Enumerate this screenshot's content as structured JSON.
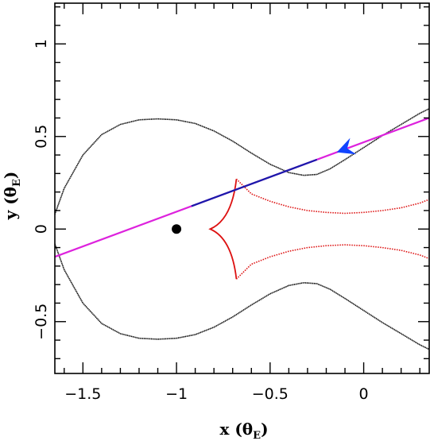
{
  "chart_data": {
    "type": "line",
    "title": "",
    "xlabel": {
      "main": "x (θ",
      "sub": "E",
      "close": ")"
    },
    "ylabel": {
      "main": "y (θ",
      "sub": "E",
      "close": ")"
    },
    "xlim": [
      -1.65,
      0.35
    ],
    "ylim": [
      -0.78,
      1.22
    ],
    "grid": false,
    "legend": "none",
    "x_ticks": [
      {
        "value": -1.5,
        "label": "−1.5"
      },
      {
        "value": -1.0,
        "label": "−1"
      },
      {
        "value": -0.5,
        "label": "−0.5"
      },
      {
        "value": 0.0,
        "label": "0"
      }
    ],
    "y_ticks": [
      {
        "value": -0.5,
        "label": "−0.5"
      },
      {
        "value": 0.0,
        "label": "0"
      },
      {
        "value": 0.5,
        "label": "0.5"
      },
      {
        "value": 1.0,
        "label": "1"
      }
    ],
    "critical_curve": {
      "color": "#000000",
      "upper": [
        [
          -1.65,
          0.08
        ],
        [
          -1.6,
          0.22
        ],
        [
          -1.5,
          0.4
        ],
        [
          -1.4,
          0.51
        ],
        [
          -1.3,
          0.565
        ],
        [
          -1.2,
          0.59
        ],
        [
          -1.1,
          0.595
        ],
        [
          -1.0,
          0.59
        ],
        [
          -0.9,
          0.57
        ],
        [
          -0.8,
          0.53
        ],
        [
          -0.7,
          0.475
        ],
        [
          -0.6,
          0.41
        ],
        [
          -0.5,
          0.35
        ],
        [
          -0.4,
          0.305
        ],
        [
          -0.32,
          0.29
        ],
        [
          -0.25,
          0.295
        ],
        [
          -0.18,
          0.325
        ],
        [
          -0.1,
          0.375
        ],
        [
          0.0,
          0.44
        ],
        [
          0.1,
          0.505
        ],
        [
          0.2,
          0.565
        ],
        [
          0.3,
          0.625
        ],
        [
          0.35,
          0.65
        ]
      ]
    },
    "caustic": {
      "color": "#dd1111",
      "cusps": {
        "left": [
          -0.82,
          0.0
        ],
        "top": [
          -0.68,
          0.27
        ],
        "bottom": [
          -0.68,
          -0.27
        ]
      },
      "right_upper": [
        [
          -0.68,
          0.27
        ],
        [
          -0.6,
          0.19
        ],
        [
          -0.5,
          0.15
        ],
        [
          -0.4,
          0.12
        ],
        [
          -0.3,
          0.1
        ],
        [
          -0.2,
          0.09
        ],
        [
          -0.1,
          0.085
        ],
        [
          0.0,
          0.09
        ],
        [
          0.1,
          0.1
        ],
        [
          0.2,
          0.115
        ],
        [
          0.3,
          0.14
        ],
        [
          0.35,
          0.16
        ]
      ]
    },
    "lens_point": {
      "x": -1.0,
      "y": 0.0,
      "color": "#000000"
    },
    "trajectory": {
      "color": "#dd22dd",
      "highlight_color": "#1a1aaa",
      "start": [
        -1.65,
        -0.15
      ],
      "end": [
        0.35,
        0.6
      ],
      "highlight_range": [
        -0.92,
        -0.25
      ],
      "arrow": {
        "x": -0.1,
        "color": "#1144ff"
      }
    }
  }
}
